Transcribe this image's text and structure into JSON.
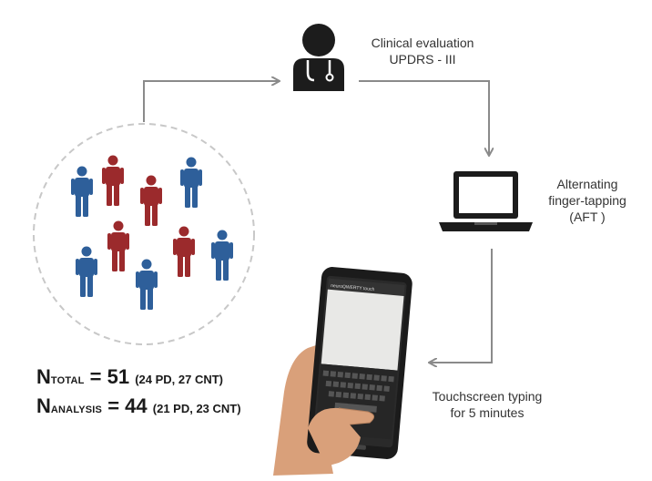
{
  "clinical": {
    "line1": "Clinical  evaluation",
    "line2": "UPDRS - III"
  },
  "aft": {
    "line1": "Alternating",
    "line2": "finger-tapping",
    "line3": "(AFT )"
  },
  "typing": {
    "line1": "Touchscreen typing",
    "line2": "for 5 minutes"
  },
  "phone": {
    "app_title": "neuroQWERTY touch"
  },
  "stats": {
    "total": {
      "letter": "N",
      "sub": "TOTAL",
      "eq": " = 51 ",
      "detail": "(24 PD, 27 CNT)"
    },
    "analysis": {
      "letter": "N",
      "sub": "ANALYSIS",
      "eq": " = 44 ",
      "detail": "(21 PD, 23 CNT)"
    }
  },
  "colors": {
    "pd": "#9b2a2c",
    "cnt": "#2e5f9a",
    "arrow": "#8a8a8a",
    "icon": "#1c1c1c"
  }
}
